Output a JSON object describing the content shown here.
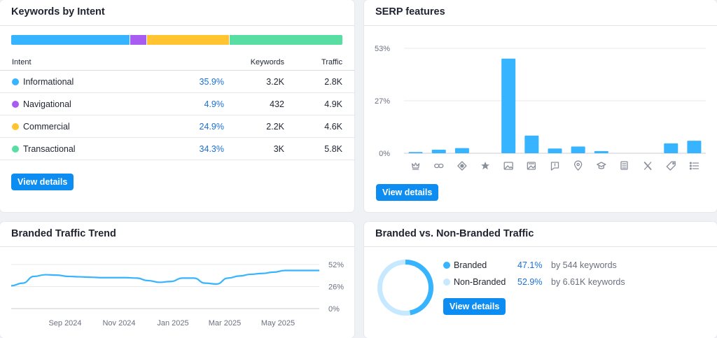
{
  "intent_card": {
    "title": "Keywords by Intent",
    "headers": {
      "intent": "Intent",
      "keywords": "Keywords",
      "traffic": "Traffic"
    },
    "rows": [
      {
        "name": "Informational",
        "pct": "35.9%",
        "keywords": "3.2K",
        "traffic": "2.8K",
        "color": "#36b4ff"
      },
      {
        "name": "Navigational",
        "pct": "4.9%",
        "keywords": "432",
        "traffic": "4.9K",
        "color": "#a95cf2"
      },
      {
        "name": "Commercial",
        "pct": "24.9%",
        "keywords": "2.2K",
        "traffic": "4.6K",
        "color": "#ffc430"
      },
      {
        "name": "Transactional",
        "pct": "34.3%",
        "keywords": "3K",
        "traffic": "5.8K",
        "color": "#58dea3"
      }
    ],
    "button": "View details"
  },
  "serp_card": {
    "title": "SERP features",
    "button": "View details",
    "chart_data": {
      "type": "bar",
      "y_ticks": [
        "53%",
        "27%",
        "0%"
      ],
      "ylim": [
        0,
        53
      ],
      "color": "#36b4ff",
      "categories": [
        "featured-snippet-icon",
        "sitelinks-icon",
        "knowledge-panel-icon",
        "reviews-icon",
        "image-icon",
        "image-pack-icon",
        "people-also-ask-icon",
        "local-pack-icon",
        "academic-icon",
        "news-icon",
        "x-twitter-icon",
        "tag-icon",
        "list-icon"
      ],
      "values": [
        0.6,
        1.8,
        2.6,
        0,
        47.8,
        8.9,
        2.4,
        3.4,
        1.1,
        0,
        0,
        5.0,
        6.3
      ]
    }
  },
  "trend_card": {
    "title": "Branded Traffic Trend",
    "chart_data": {
      "type": "line",
      "y_ticks": [
        "52%",
        "26%",
        "0%"
      ],
      "ylim": [
        0,
        52
      ],
      "x_labels": [
        "Sep 2024",
        "Nov 2024",
        "Jan 2025",
        "Mar 2025",
        "May 2025"
      ],
      "color": "#36b4ff",
      "values": [
        27,
        30,
        38,
        40,
        39.5,
        38,
        37.5,
        37,
        36.5,
        36.5,
        36.5,
        36,
        33,
        31,
        32,
        36,
        36,
        30,
        29,
        36,
        38.5,
        40.5,
        41.5,
        43,
        45,
        45,
        45,
        45
      ]
    }
  },
  "bvn_card": {
    "title": "Branded vs. Non-Branded Traffic",
    "button": "View details",
    "chart_data": {
      "type": "pie",
      "labels": [
        "Branded",
        "Non-Branded"
      ],
      "values": [
        47.1,
        52.9
      ],
      "colors": [
        "#36b4ff",
        "#c6e9ff"
      ]
    },
    "rows": [
      {
        "label": "Branded",
        "pct": "47.1%",
        "kw": "by 544 keywords",
        "color": "#36b4ff"
      },
      {
        "label": "Non-Branded",
        "pct": "52.9%",
        "kw": "by 6.61K keywords",
        "color": "#c6e9ff"
      }
    ]
  }
}
